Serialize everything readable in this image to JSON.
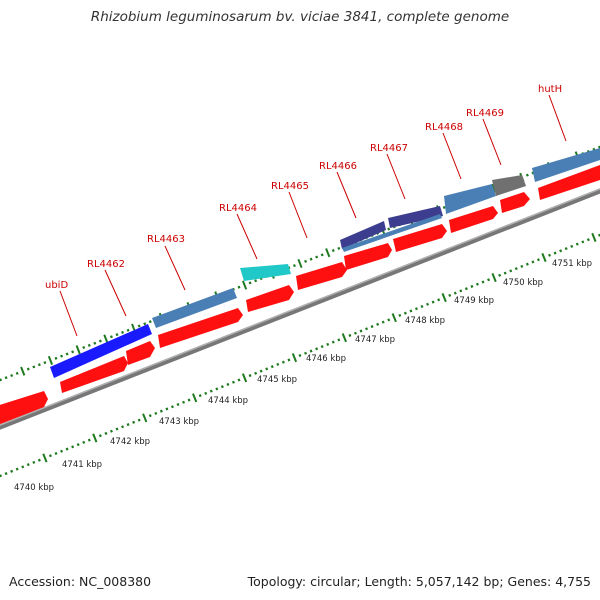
{
  "title": "Rhizobium leguminosarum bv. viciae 3841, complete genome",
  "footer": {
    "accession": "Accession: NC_008380",
    "stats": "Topology: circular; Length: 5,057,142 bp; Genes: 4,755"
  },
  "colors": {
    "cds_red": "#ff1010",
    "gene_steel": "#4a7fb5",
    "gene_blue": "#1a1aff",
    "gene_cyan": "#20c8c8",
    "gene_indigo": "#3d3d8f",
    "gene_gray": "#707070",
    "backbone": "#888888",
    "tick_green": "#1e7a1e",
    "label_red": "#cc0000"
  },
  "gene_labels": [
    "ubiD",
    "RL4462",
    "RL4463",
    "RL4464",
    "RL4465",
    "RL4466",
    "RL4467",
    "RL4468",
    "RL4469",
    "hutH"
  ],
  "kbp_labels": [
    "4740 kbp",
    "4741 kbp",
    "4742 kbp",
    "4743 kbp",
    "4744 kbp",
    "4745 kbp",
    "4746 kbp",
    "4747 kbp",
    "4748 kbp",
    "4749 kbp",
    "4750 kbp",
    "4751 kbp"
  ]
}
